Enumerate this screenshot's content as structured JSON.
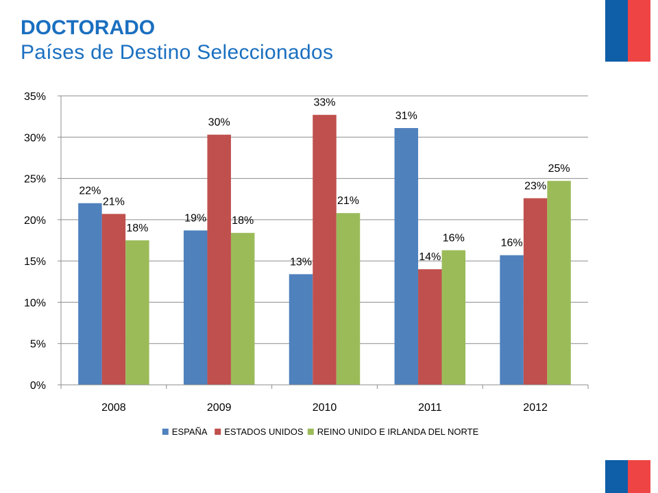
{
  "header": {
    "title": "DOCTORADO",
    "subtitle": "Países de Destino Seleccionados"
  },
  "colors": {
    "title": "#1a6fc0",
    "flag_blue": "#0e5ea8",
    "flag_red": "#ef4444"
  },
  "chart_data": {
    "type": "bar",
    "categories": [
      "2008",
      "2009",
      "2010",
      "2011",
      "2012"
    ],
    "series": [
      {
        "name": "ESPAÑA",
        "color": "#4f81bd",
        "values": [
          22,
          18.7,
          13.4,
          31.1,
          15.7
        ],
        "labels": [
          "22%",
          "19%",
          "13%",
          "31%",
          "16%"
        ]
      },
      {
        "name": "ESTADOS UNIDOS",
        "color": "#c0504d",
        "values": [
          20.7,
          30.3,
          32.7,
          14,
          22.6
        ],
        "labels": [
          "21%",
          "30%",
          "33%",
          "14%",
          "23%"
        ]
      },
      {
        "name": "REINO UNIDO E IRLANDA DEL NORTE",
        "color": "#9bbb59",
        "values": [
          17.5,
          18.4,
          20.8,
          16.3,
          24.7
        ],
        "labels": [
          "18%",
          "18%",
          "21%",
          "16%",
          "25%"
        ]
      }
    ],
    "yticks": [
      "0%",
      "5%",
      "10%",
      "15%",
      "20%",
      "25%",
      "30%",
      "35%"
    ],
    "ylim": [
      0,
      35
    ],
    "grid": true,
    "legend_position": "bottom"
  }
}
